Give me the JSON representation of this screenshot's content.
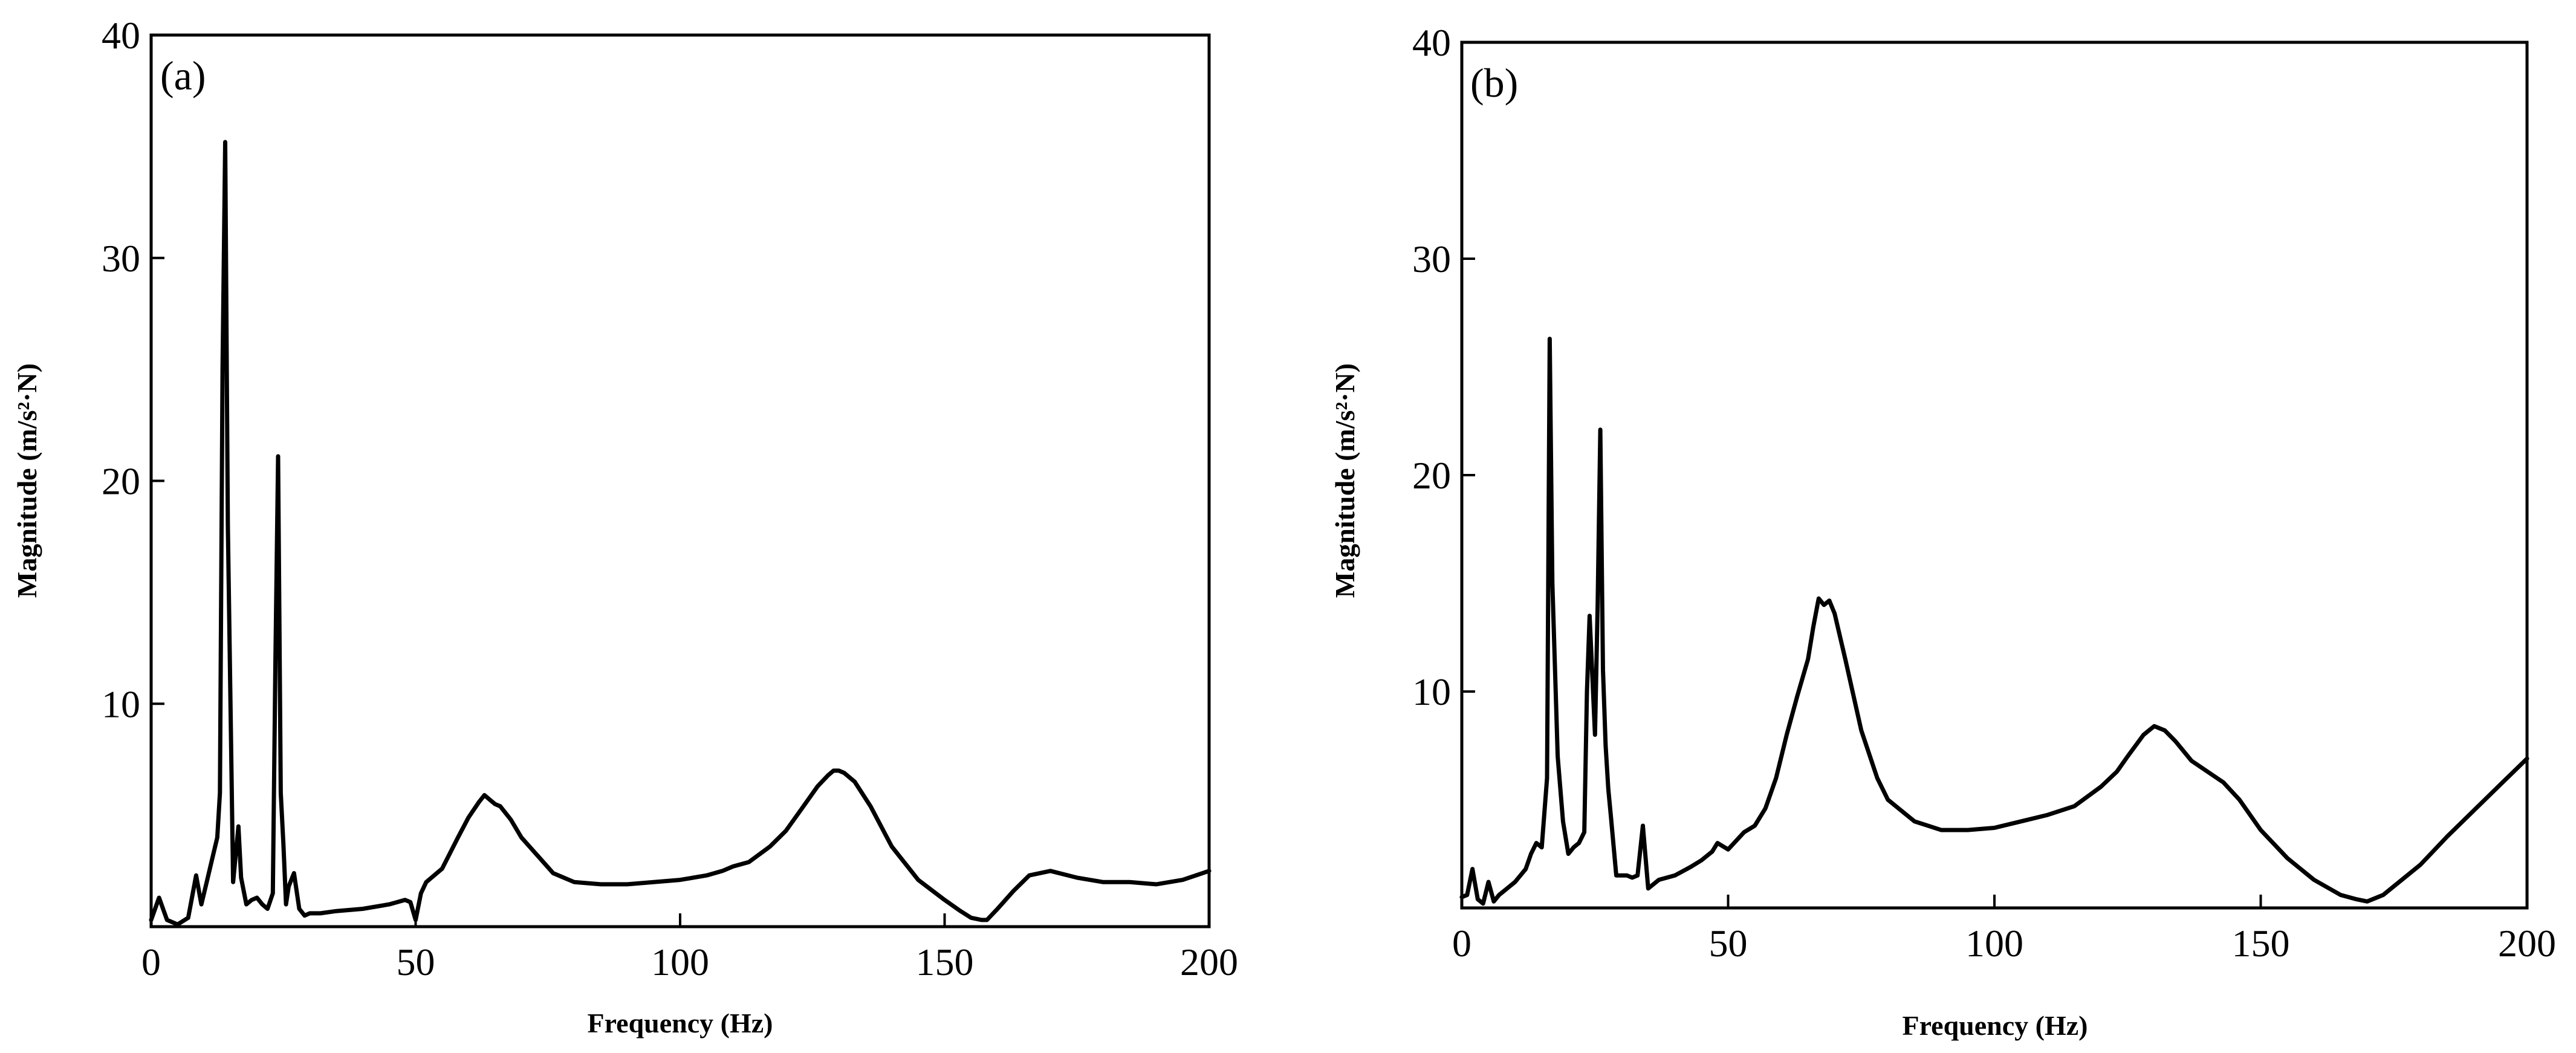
{
  "chart_data": [
    {
      "type": "line",
      "panel_label": "(a)",
      "xlabel": "Frequency (Hz)",
      "ylabel": "Magnitude (m/s²·N)",
      "xlim": [
        0,
        200
      ],
      "ylim": [
        0,
        40
      ],
      "xticks": [
        0,
        50,
        100,
        150,
        200
      ],
      "xtick_labels": [
        "0",
        "50",
        "100",
        "150",
        "200"
      ],
      "yticks": [
        10,
        20,
        30,
        40
      ],
      "ytick_labels": [
        "10",
        "20",
        "30",
        "40"
      ],
      "grid": false,
      "series": [
        {
          "x": [
            0,
            1.5,
            3,
            5,
            7,
            8.5,
            9.5,
            10.5,
            11.5,
            12.5,
            13,
            13.5,
            14,
            14.5,
            15.5,
            16.5,
            17,
            18,
            19,
            20,
            21,
            22,
            23,
            23.5,
            24,
            24.5,
            25,
            25.5,
            26,
            27,
            28,
            29,
            30,
            32,
            35,
            40,
            45,
            48,
            49,
            50,
            51,
            52,
            55,
            58,
            60,
            62,
            63,
            64,
            65,
            66,
            68,
            70,
            73,
            76,
            80,
            85,
            90,
            95,
            100,
            105,
            108,
            110,
            113,
            117,
            120,
            123,
            126,
            128,
            129,
            130,
            131,
            133,
            136,
            140,
            145,
            150,
            153,
            155,
            157,
            158,
            160,
            163,
            166,
            170,
            175,
            180,
            185,
            190,
            195,
            200
          ],
          "y": [
            0.3,
            1.3,
            0.3,
            0.1,
            0.4,
            2.3,
            1.0,
            2.0,
            3.0,
            4.0,
            6.0,
            25.0,
            35.2,
            18.0,
            2.0,
            4.5,
            2.2,
            1.0,
            1.2,
            1.3,
            1.0,
            0.8,
            1.5,
            12.0,
            21.1,
            6.0,
            3.7,
            1.0,
            1.8,
            2.4,
            0.8,
            0.5,
            0.6,
            0.6,
            0.7,
            0.8,
            1.0,
            1.2,
            1.1,
            0.3,
            1.5,
            2.0,
            2.6,
            4.0,
            4.9,
            5.6,
            5.9,
            5.7,
            5.5,
            5.4,
            4.8,
            4.0,
            3.2,
            2.4,
            2.0,
            1.9,
            1.9,
            2.0,
            2.1,
            2.3,
            2.5,
            2.7,
            2.9,
            3.6,
            4.3,
            5.3,
            6.3,
            6.8,
            7.0,
            7.0,
            6.9,
            6.5,
            5.4,
            3.6,
            2.1,
            1.2,
            0.7,
            0.4,
            0.3,
            0.3,
            0.8,
            1.6,
            2.3,
            2.5,
            2.2,
            2.0,
            2.0,
            1.9,
            2.1,
            2.5
          ]
        }
      ]
    },
    {
      "type": "line",
      "panel_label": "(b)",
      "xlabel": "Frequency (Hz)",
      "ylabel": "Magnitude (m/s²·N)",
      "xlim": [
        0,
        200
      ],
      "ylim": [
        0,
        40
      ],
      "xticks": [
        0,
        50,
        100,
        150,
        200
      ],
      "xtick_labels": [
        "0",
        "50",
        "100",
        "150",
        "200"
      ],
      "yticks": [
        10,
        20,
        30,
        40
      ],
      "ytick_labels": [
        "10",
        "20",
        "30",
        "40"
      ],
      "grid": false,
      "series": [
        {
          "x": [
            0,
            1,
            2,
            3,
            4,
            5,
            6,
            7,
            8,
            9,
            10,
            11,
            12,
            13,
            14,
            15,
            16,
            16.5,
            17,
            18,
            19,
            20,
            21,
            22,
            23,
            23.5,
            24,
            25,
            25.5,
            26,
            26.5,
            27,
            27.5,
            28,
            29,
            30,
            31,
            32,
            33,
            34,
            35,
            37,
            40,
            43,
            45,
            47,
            48,
            50,
            53,
            55,
            57,
            59,
            61,
            63,
            65,
            66,
            67,
            68,
            69,
            70,
            72,
            75,
            78,
            80,
            85,
            90,
            95,
            100,
            105,
            110,
            115,
            120,
            123,
            125,
            128,
            130,
            132,
            134,
            137,
            140,
            143,
            146,
            150,
            155,
            160,
            165,
            168,
            170,
            173,
            176,
            180,
            185,
            190,
            195,
            200
          ],
          "y": [
            0.5,
            0.6,
            1.8,
            0.4,
            0.2,
            1.2,
            0.3,
            0.6,
            0.8,
            1.0,
            1.2,
            1.5,
            1.8,
            2.5,
            3.0,
            2.8,
            6.0,
            26.3,
            15.0,
            7.0,
            4.0,
            2.5,
            2.8,
            3.0,
            3.5,
            10.0,
            13.5,
            8.0,
            14.0,
            22.1,
            11.0,
            7.5,
            5.5,
            4.2,
            1.5,
            1.5,
            1.5,
            1.4,
            1.5,
            3.8,
            0.9,
            1.3,
            1.5,
            1.9,
            2.2,
            2.6,
            3.0,
            2.7,
            3.5,
            3.8,
            4.6,
            6.0,
            8.0,
            9.8,
            11.5,
            13.0,
            14.3,
            14.0,
            14.2,
            13.6,
            11.5,
            8.2,
            6.0,
            5.0,
            4.0,
            3.6,
            3.6,
            3.7,
            4.0,
            4.3,
            4.7,
            5.6,
            6.3,
            7.0,
            8.0,
            8.4,
            8.2,
            7.7,
            6.8,
            6.3,
            5.8,
            5.0,
            3.6,
            2.3,
            1.3,
            0.6,
            0.4,
            0.3,
            0.6,
            1.2,
            2.0,
            3.3,
            4.5,
            5.7,
            6.9
          ]
        }
      ]
    }
  ]
}
